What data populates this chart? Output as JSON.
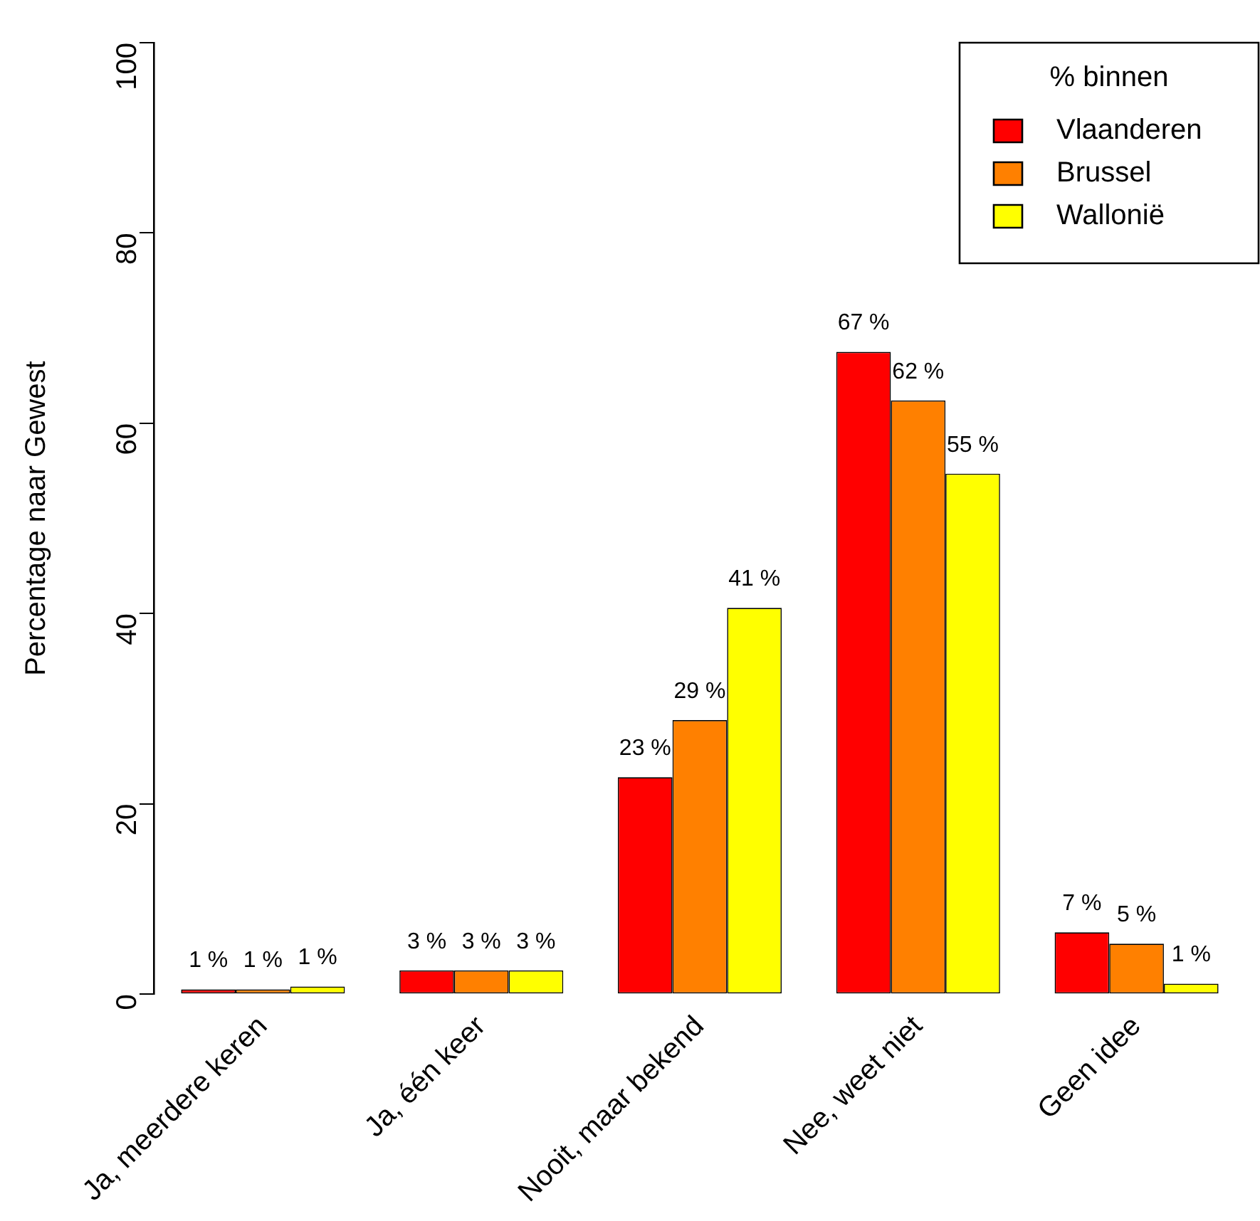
{
  "chart_data": {
    "type": "bar",
    "ylabel": "Percentage naar Gewest",
    "legend_title": "% binnen",
    "legend": "top right",
    "categories": [
      "Ja, meerdere keren",
      "Ja, één keer",
      "Nooit, maar bekend",
      "Nee, weet niet",
      "Geen idee"
    ],
    "series": [
      {
        "name": "Vlaanderen",
        "color": "#ff0000",
        "values": [
          0.5,
          2.5,
          22.8,
          67.5,
          6.5
        ],
        "value_labels": [
          "1 %",
          "3 %",
          "23 %",
          "67 %",
          "7 %"
        ]
      },
      {
        "name": "Brussel",
        "color": "#ff8000",
        "values": [
          0.5,
          2.5,
          28.8,
          62.4,
          5.3
        ],
        "value_labels": [
          "1 %",
          "3 %",
          "29 %",
          "62 %",
          "5 %"
        ]
      },
      {
        "name": "Wallonië",
        "color": "#ffff00",
        "values": [
          0.8,
          2.5,
          40.6,
          54.7,
          1.1
        ],
        "value_labels": [
          "1 %",
          "3 %",
          "41 %",
          "55 %",
          "1 %"
        ]
      }
    ],
    "ylim": [
      0,
      100
    ],
    "yticks": [
      0,
      20,
      40,
      60,
      80,
      100
    ],
    "grid": false
  }
}
